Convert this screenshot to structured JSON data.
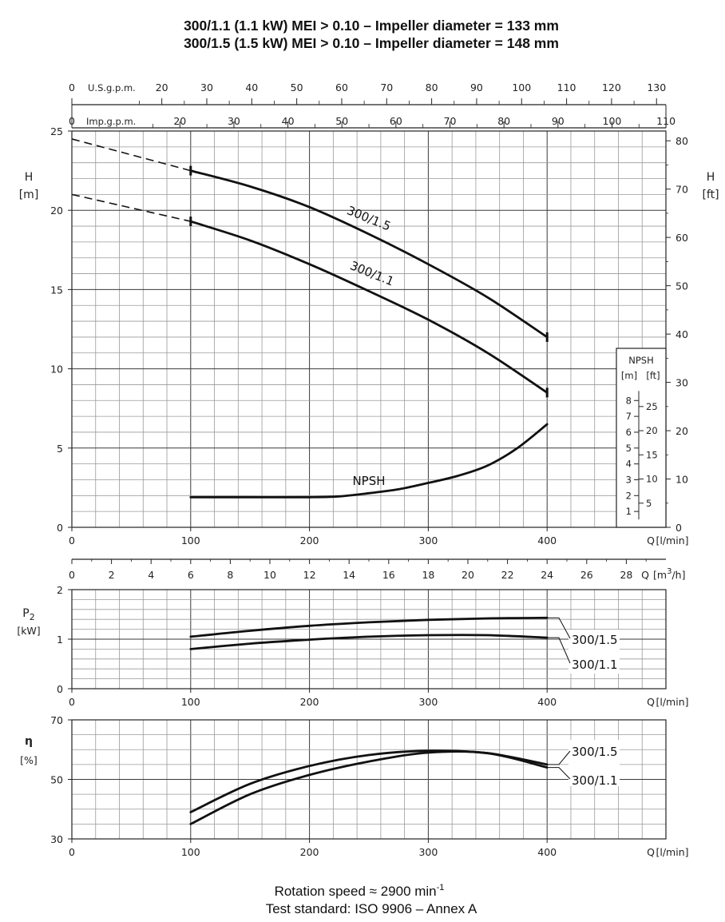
{
  "titles": {
    "line1": "300/1.1 (1.1 kW) MEI > 0.10 – Impeller diameter = 133 mm",
    "line2": "300/1.5 (1.5 kW) MEI > 0.10 – Impeller diameter = 148 mm"
  },
  "footer": {
    "line1": "Rotation speed ≈ 2900 min",
    "line1_sup": "-1",
    "line2": "Test standard: ISO 9906 – Annex A"
  },
  "top_axes": {
    "usgpm_label": "U.S.g.p.m.",
    "usgpm_ticks": [
      0,
      20,
      30,
      40,
      50,
      60,
      70,
      80,
      90,
      100,
      110,
      120,
      130
    ],
    "impgpm_label": "Imp.g.p.m.",
    "impgpm_ticks": [
      0,
      20,
      30,
      40,
      50,
      60,
      70,
      80,
      90,
      100,
      110
    ]
  },
  "units": {
    "H_left": "H",
    "H_left_unit": "[m]",
    "H_right": "H",
    "H_right_unit": "[ft]",
    "Q_lmin": "Q",
    "Q_lmin_unit": "[l/min]",
    "Q_m3h": "Q",
    "Q_m3h_unit_pre": "[m",
    "Q_m3h_unit_sup": "3",
    "Q_m3h_unit_post": "/h]",
    "P2": "P",
    "P2_sub": "2",
    "P2_unit": "[kW]",
    "eta": "η",
    "eta_unit": "[%]"
  },
  "npsh_box": {
    "title": "NPSH",
    "m_label": "[m]",
    "ft_label": "[ft]",
    "m_ticks": [
      1,
      2,
      3,
      4,
      5,
      6,
      7,
      8
    ],
    "ft_ticks": [
      5,
      10,
      15,
      20,
      25
    ]
  },
  "chart_data": [
    {
      "type": "line",
      "name": "head",
      "x_unit": "l/min",
      "xlim": [
        0,
        500
      ],
      "ylim": [
        0,
        25
      ],
      "x_ticks": [
        0,
        100,
        200,
        300,
        400
      ],
      "y_ticks": [
        0,
        5,
        10,
        15,
        20,
        25
      ],
      "y2_ticks_ft": [
        0,
        10,
        20,
        30,
        40,
        50,
        60,
        70,
        80
      ],
      "x2_ticks_m3h": [
        0,
        2,
        4,
        6,
        8,
        10,
        12,
        14,
        16,
        18,
        20,
        22,
        24,
        26,
        28
      ],
      "series": [
        {
          "name": "300/1.5",
          "x": [
            100,
            150,
            200,
            250,
            300,
            350,
            400
          ],
          "y": [
            22.5,
            21.5,
            20.2,
            18.5,
            16.6,
            14.5,
            12.0
          ],
          "extrapolated": {
            "x": [
              0,
              100
            ],
            "y": [
              24.5,
              22.5
            ]
          }
        },
        {
          "name": "300/1.1",
          "x": [
            100,
            150,
            200,
            250,
            300,
            350,
            400
          ],
          "y": [
            19.3,
            18.1,
            16.6,
            14.9,
            13.1,
            11.0,
            8.5
          ],
          "extrapolated": {
            "x": [
              0,
              100
            ],
            "y": [
              21.0,
              19.3
            ]
          }
        },
        {
          "name": "NPSH",
          "x": [
            100,
            150,
            200,
            225,
            250,
            275,
            300,
            325,
            350,
            375,
            400
          ],
          "y": [
            1.9,
            1.9,
            1.9,
            1.95,
            2.15,
            2.4,
            2.8,
            3.25,
            3.9,
            5.0,
            6.5
          ]
        }
      ]
    },
    {
      "type": "line",
      "name": "power",
      "x_unit": "l/min",
      "xlim": [
        0,
        500
      ],
      "ylim": [
        0,
        2
      ],
      "x_ticks": [
        0,
        100,
        200,
        300,
        400
      ],
      "y_ticks": [
        0,
        1,
        2
      ],
      "series": [
        {
          "name": "300/1.5",
          "x": [
            100,
            150,
            200,
            250,
            300,
            350,
            400
          ],
          "y": [
            1.05,
            1.17,
            1.27,
            1.34,
            1.39,
            1.42,
            1.43
          ]
        },
        {
          "name": "300/1.1",
          "x": [
            100,
            150,
            200,
            250,
            300,
            350,
            400
          ],
          "y": [
            0.8,
            0.91,
            0.99,
            1.05,
            1.08,
            1.08,
            1.03
          ]
        }
      ]
    },
    {
      "type": "line",
      "name": "efficiency",
      "x_unit": "l/min",
      "xlim": [
        0,
        500
      ],
      "ylim": [
        30,
        70
      ],
      "x_ticks": [
        0,
        100,
        200,
        300,
        400
      ],
      "y_ticks": [
        30,
        50,
        70
      ],
      "series": [
        {
          "name": "300/1.5",
          "x": [
            100,
            150,
            200,
            250,
            300,
            350,
            400
          ],
          "y": [
            39,
            48.5,
            54.5,
            58.2,
            59.6,
            58.8,
            55
          ]
        },
        {
          "name": "300/1.1",
          "x": [
            100,
            150,
            200,
            250,
            300,
            350,
            400
          ],
          "y": [
            35,
            45,
            51.5,
            56,
            59,
            58.8,
            54
          ]
        }
      ]
    }
  ]
}
